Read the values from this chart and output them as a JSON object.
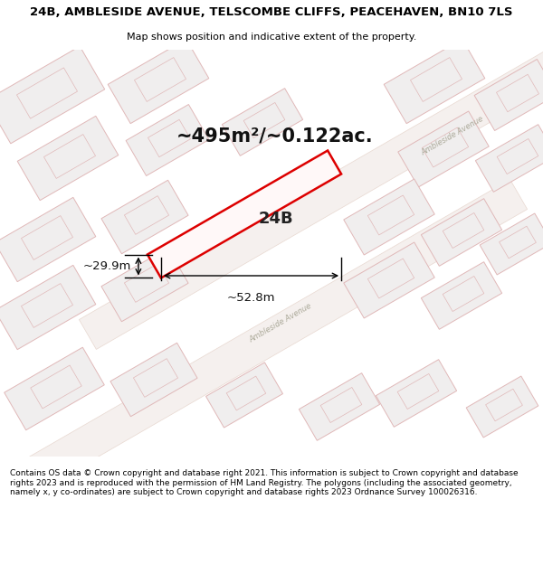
{
  "title_line1": "24B, AMBLESIDE AVENUE, TELSCOMBE CLIFFS, PEACEHAVEN, BN10 7LS",
  "title_line2": "Map shows position and indicative extent of the property.",
  "area_text": "~495m²/~0.122ac.",
  "label_text": "24B",
  "dim_width": "~52.8m",
  "dim_height": "~29.9m",
  "road_label": "Ambleside Avenue",
  "footer_text": "Contains OS data © Crown copyright and database right 2021. This information is subject to Crown copyright and database rights 2023 and is reproduced with the permission of HM Land Registry. The polygons (including the associated geometry, namely x, y co-ordinates) are subject to Crown copyright and database rights 2023 Ordnance Survey 100026316.",
  "bg_color": "#ffffff",
  "map_bg": "#ffffff",
  "building_fill": "#f0eeee",
  "building_edge": "#e0b8b8",
  "highlight_fill": "#fff8f8",
  "highlight_edge": "#dd0000",
  "road_fill": "#f5f0ee",
  "road_edge": "#e8d8d0"
}
